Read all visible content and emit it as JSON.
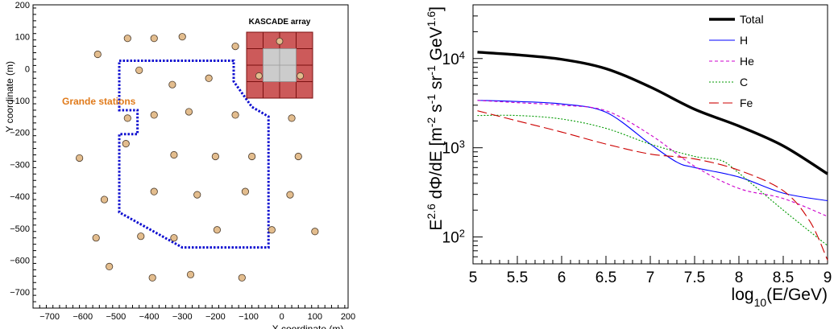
{
  "chart_data": [
    {
      "type": "scatter",
      "xlabel": "X coordinate (m)",
      "ylabel": "Y coordinate (m)",
      "xlim": [
        -750,
        200
      ],
      "ylim": [
        -750,
        200
      ],
      "xticks": [
        -700,
        -600,
        -500,
        -400,
        -300,
        -200,
        -100,
        0,
        100,
        200
      ],
      "yticks": [
        -700,
        -600,
        -500,
        -400,
        -300,
        -200,
        -100,
        0,
        100,
        200
      ],
      "annotations": {
        "grande_label": "Grande stations",
        "kascade_label": "KASCADE array"
      },
      "colors": {
        "stations": "#e3bd8e",
        "boundary": "#1010d0",
        "grande_label": "#e07a1a",
        "kascade": "#cc5a5a"
      },
      "stations": [
        {
          "x": -555,
          "y": 45
        },
        {
          "x": -465,
          "y": 95
        },
        {
          "x": -385,
          "y": 95
        },
        {
          "x": -300,
          "y": 100
        },
        {
          "x": -140,
          "y": 70
        },
        {
          "x": -430,
          "y": -5
        },
        {
          "x": -330,
          "y": -50
        },
        {
          "x": -220,
          "y": -30
        },
        {
          "x": -465,
          "y": -155
        },
        {
          "x": -385,
          "y": -145
        },
        {
          "x": -280,
          "y": -135
        },
        {
          "x": -140,
          "y": -145
        },
        {
          "x": 30,
          "y": -155
        },
        {
          "x": -610,
          "y": -280
        },
        {
          "x": -470,
          "y": -235
        },
        {
          "x": -325,
          "y": -270
        },
        {
          "x": -200,
          "y": -275
        },
        {
          "x": -90,
          "y": -275
        },
        {
          "x": 50,
          "y": -275
        },
        {
          "x": -535,
          "y": -410
        },
        {
          "x": -385,
          "y": -385
        },
        {
          "x": -255,
          "y": -395
        },
        {
          "x": -110,
          "y": -385
        },
        {
          "x": 25,
          "y": -395
        },
        {
          "x": -560,
          "y": -530
        },
        {
          "x": -425,
          "y": -525
        },
        {
          "x": -325,
          "y": -530
        },
        {
          "x": -195,
          "y": -505
        },
        {
          "x": -30,
          "y": -505
        },
        {
          "x": 100,
          "y": -510
        },
        {
          "x": -520,
          "y": -620
        },
        {
          "x": -390,
          "y": -655
        },
        {
          "x": -275,
          "y": -645
        },
        {
          "x": -120,
          "y": -655
        }
      ],
      "boundary": [
        [
          -490,
          25
        ],
        [
          -145,
          25
        ],
        [
          -145,
          -40
        ],
        [
          -90,
          -120
        ],
        [
          -40,
          -150
        ],
        [
          -40,
          -560
        ],
        [
          -300,
          -560
        ],
        [
          -490,
          -450
        ],
        [
          -490,
          -205
        ],
        [
          -435,
          -205
        ],
        [
          -435,
          -130
        ],
        [
          -490,
          -130
        ],
        [
          -490,
          25
        ]
      ]
    },
    {
      "type": "line",
      "xlabel": "log_10(E/GeV)",
      "ylabel": "E^2.6 dΦ/dE [m^-2 s^-1 sr^-1 GeV^1.6]",
      "xlim": [
        5,
        9
      ],
      "ylim": [
        50,
        40000
      ],
      "yscale": "log",
      "xticks": [
        5,
        5.5,
        6,
        6.5,
        7,
        7.5,
        8,
        8.5,
        9
      ],
      "yticks": [
        100,
        1000,
        10000
      ],
      "legend": {
        "placement": "top-right"
      },
      "series": [
        {
          "name": "Total",
          "color": "#000000",
          "style": "solid-thick",
          "x": [
            5.05,
            5.5,
            6.0,
            6.5,
            7.0,
            7.5,
            8.0,
            8.5,
            9.0
          ],
          "y": [
            11800,
            11000,
            9800,
            7700,
            4800,
            2700,
            1750,
            1050,
            510
          ]
        },
        {
          "name": "H",
          "color": "#0000ff",
          "style": "solid",
          "x": [
            5.05,
            5.5,
            6.0,
            6.5,
            7.0,
            7.3,
            7.5,
            8.0,
            8.5,
            9.0
          ],
          "y": [
            3400,
            3300,
            3100,
            2500,
            1100,
            690,
            600,
            470,
            310,
            255
          ]
        },
        {
          "name": "He",
          "color": "#cc00cc",
          "style": "dashed",
          "x": [
            5.05,
            5.5,
            6.0,
            6.5,
            7.0,
            7.5,
            8.0,
            8.5,
            9.0
          ],
          "y": [
            3400,
            3200,
            3000,
            2600,
            1400,
            620,
            350,
            270,
            170
          ]
        },
        {
          "name": "C",
          "color": "#009900",
          "style": "dotted",
          "x": [
            5.05,
            5.5,
            6.0,
            6.5,
            7.0,
            7.5,
            7.8,
            8.0,
            8.5,
            9.0
          ],
          "y": [
            2300,
            2300,
            2100,
            1650,
            1100,
            800,
            720,
            520,
            200,
            80
          ]
        },
        {
          "name": "Fe",
          "color": "#cc0000",
          "style": "long-dash",
          "x": [
            5.05,
            5.5,
            6.0,
            6.5,
            7.0,
            7.5,
            8.0,
            8.5,
            8.8,
            9.0
          ],
          "y": [
            2600,
            2000,
            1500,
            1100,
            850,
            750,
            560,
            330,
            150,
            55
          ]
        }
      ]
    }
  ]
}
